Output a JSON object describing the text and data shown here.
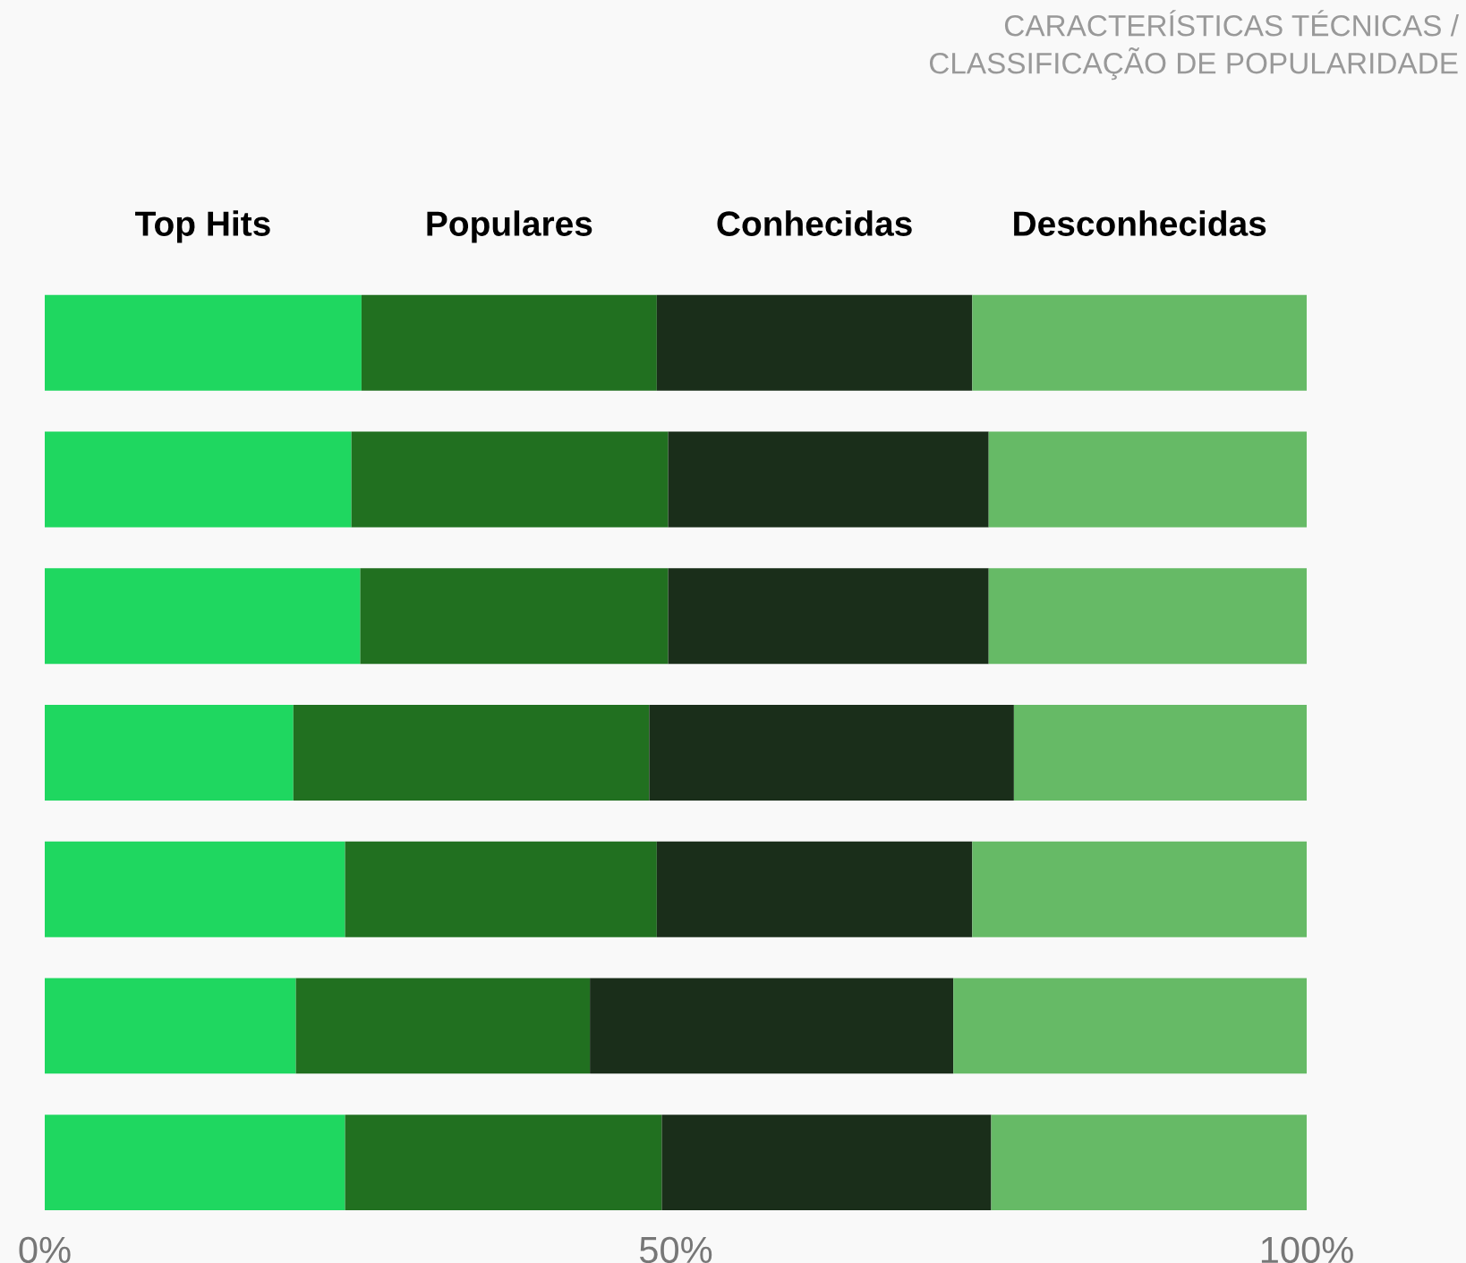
{
  "chart_data": {
    "type": "bar",
    "orientation": "horizontal",
    "stacked": true,
    "categories": [
      null,
      null,
      null,
      null,
      null,
      null,
      null
    ],
    "series": [
      {
        "name": "Top Hits",
        "color": "#1fd760",
        "values": [
          25.1,
          24.3,
          25.0,
          19.7,
          23.8,
          19.9,
          23.8
        ]
      },
      {
        "name": "Populares",
        "color": "#217020",
        "values": [
          23.4,
          25.1,
          24.4,
          28.2,
          24.7,
          23.3,
          25.1
        ]
      },
      {
        "name": "Conhecidas",
        "color": "#1a2e1a",
        "values": [
          25.0,
          25.4,
          25.4,
          28.9,
          25.0,
          28.8,
          26.1
        ]
      },
      {
        "name": "Desconhecidas",
        "color": "#66ba66",
        "values": [
          26.5,
          25.2,
          25.2,
          23.2,
          26.5,
          28.0,
          25.0
        ]
      }
    ],
    "xlim": [
      0,
      100
    ],
    "xticks": [
      {
        "value": 0,
        "label": "0%"
      },
      {
        "value": 50,
        "label": "50%"
      },
      {
        "value": 100,
        "label": "100%"
      }
    ],
    "annotations": [
      "CARACTERÍSTICAS TÉCNICAS /\nCLASSIFICAÇÃO DE POPULARIDADE"
    ],
    "grid": false,
    "legend": false
  }
}
